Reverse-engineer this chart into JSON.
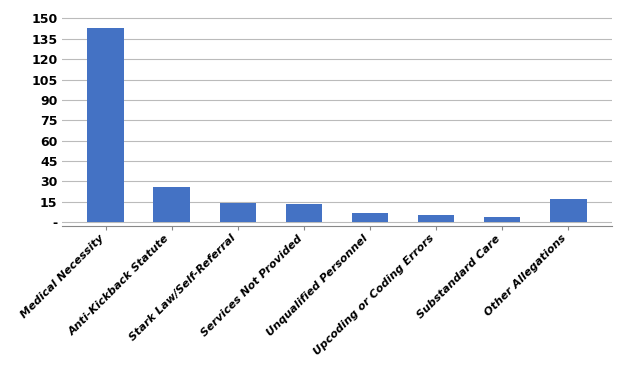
{
  "categories": [
    "Medical Necessity",
    "Anti-Kickback Statute",
    "Stark Law/Self-Referral",
    "Services Not Provided",
    "Unqualified Personnel",
    "Upcoding or Coding Errors",
    "Substandard Care",
    "Other Allegations"
  ],
  "values": [
    143,
    26,
    14,
    13,
    7,
    5,
    4,
    17
  ],
  "bar_color": "#4472C4",
  "yticks": [
    0,
    15,
    30,
    45,
    60,
    75,
    90,
    105,
    120,
    135,
    150
  ],
  "ytick_labels": [
    "-",
    "15",
    "30",
    "45",
    "60",
    "75",
    "90",
    "105",
    "120",
    "135",
    "150"
  ],
  "ylim": [
    -3,
    155
  ],
  "background_color": "#ffffff",
  "grid_color": "#bbbbbb",
  "label_fontsize": 8,
  "tick_fontsize": 9
}
